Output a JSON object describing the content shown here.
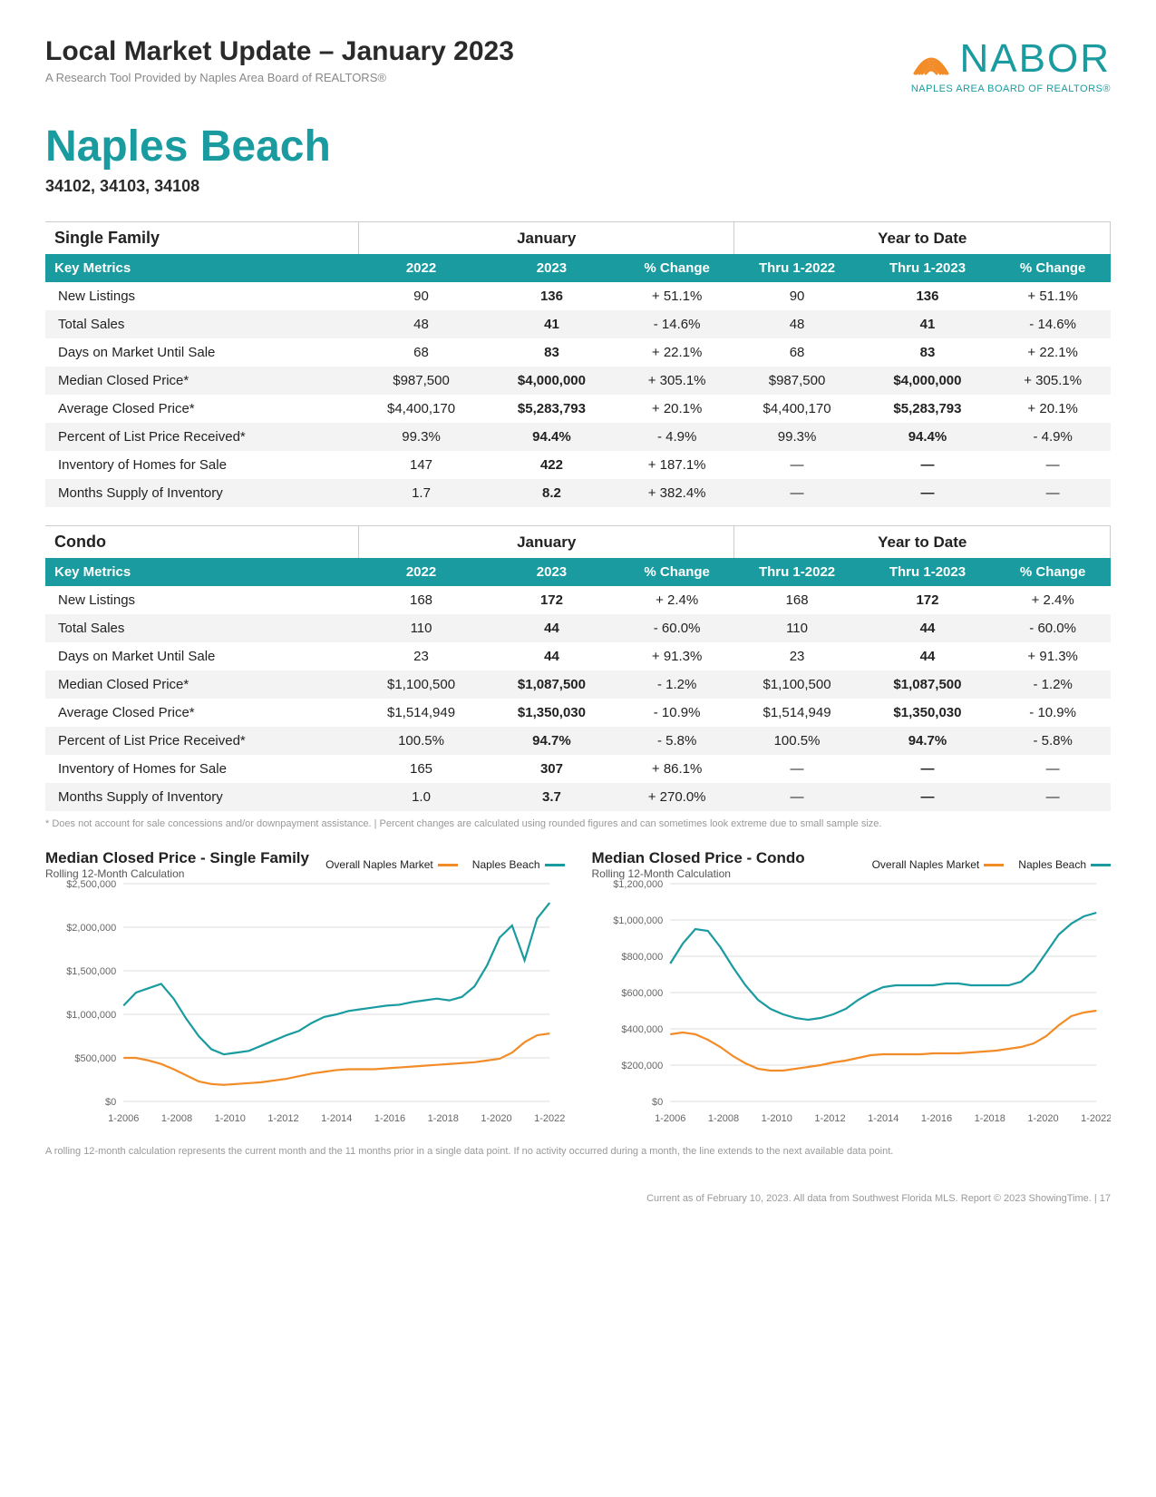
{
  "colors": {
    "teal": "#1a9ba0",
    "orange": "#f28c28",
    "grid": "#dddddd",
    "text_gray": "#888888"
  },
  "header": {
    "title": "Local Market Update – January 2023",
    "subtitle": "A Research Tool Provided by Naples Area Board of REALTORS®",
    "logo_text": "NABOR",
    "logo_sub": "NAPLES AREA BOARD OF REALTORS®"
  },
  "region": {
    "name": "Naples Beach",
    "zips": "34102, 34103, 34108"
  },
  "tables": [
    {
      "section": "Single Family",
      "group1": "January",
      "group2": "Year to Date",
      "headers": [
        "Key Metrics",
        "2022",
        "2023",
        "% Change",
        "Thru 1-2022",
        "Thru 1-2023",
        "% Change"
      ],
      "rows": [
        [
          "New Listings",
          "90",
          "136",
          "+ 51.1%",
          "90",
          "136",
          "+ 51.1%"
        ],
        [
          "Total Sales",
          "48",
          "41",
          "- 14.6%",
          "48",
          "41",
          "- 14.6%"
        ],
        [
          "Days on Market Until Sale",
          "68",
          "83",
          "+ 22.1%",
          "68",
          "83",
          "+ 22.1%"
        ],
        [
          "Median Closed Price*",
          "$987,500",
          "$4,000,000",
          "+ 305.1%",
          "$987,500",
          "$4,000,000",
          "+ 305.1%"
        ],
        [
          "Average Closed Price*",
          "$4,400,170",
          "$5,283,793",
          "+ 20.1%",
          "$4,400,170",
          "$5,283,793",
          "+ 20.1%"
        ],
        [
          "Percent of List Price Received*",
          "99.3%",
          "94.4%",
          "- 4.9%",
          "99.3%",
          "94.4%",
          "- 4.9%"
        ],
        [
          "Inventory of Homes for Sale",
          "147",
          "422",
          "+ 187.1%",
          "—",
          "—",
          "—"
        ],
        [
          "Months Supply of Inventory",
          "1.7",
          "8.2",
          "+ 382.4%",
          "—",
          "—",
          "—"
        ]
      ]
    },
    {
      "section": "Condo",
      "group1": "January",
      "group2": "Year to Date",
      "headers": [
        "Key Metrics",
        "2022",
        "2023",
        "% Change",
        "Thru 1-2022",
        "Thru 1-2023",
        "% Change"
      ],
      "rows": [
        [
          "New Listings",
          "168",
          "172",
          "+ 2.4%",
          "168",
          "172",
          "+ 2.4%"
        ],
        [
          "Total Sales",
          "110",
          "44",
          "- 60.0%",
          "110",
          "44",
          "- 60.0%"
        ],
        [
          "Days on Market Until Sale",
          "23",
          "44",
          "+ 91.3%",
          "23",
          "44",
          "+ 91.3%"
        ],
        [
          "Median Closed Price*",
          "$1,100,500",
          "$1,087,500",
          "- 1.2%",
          "$1,100,500",
          "$1,087,500",
          "- 1.2%"
        ],
        [
          "Average Closed Price*",
          "$1,514,949",
          "$1,350,030",
          "- 10.9%",
          "$1,514,949",
          "$1,350,030",
          "- 10.9%"
        ],
        [
          "Percent of List Price Received*",
          "100.5%",
          "94.7%",
          "- 5.8%",
          "100.5%",
          "94.7%",
          "- 5.8%"
        ],
        [
          "Inventory of Homes for Sale",
          "165",
          "307",
          "+ 86.1%",
          "—",
          "—",
          "—"
        ],
        [
          "Months Supply of Inventory",
          "1.0",
          "3.7",
          "+ 270.0%",
          "—",
          "—",
          "—"
        ]
      ]
    }
  ],
  "table_footnote": "* Does not account for sale concessions and/or downpayment assistance. | Percent changes are calculated using rounded figures and can sometimes look extreme due to small sample size.",
  "charts": [
    {
      "title": "Median Closed Price - Single Family",
      "subtitle": "Rolling 12-Month Calculation",
      "legend": [
        {
          "label": "Overall Naples Market",
          "color": "#f28c28"
        },
        {
          "label": "Naples Beach",
          "color": "#1a9ba0"
        }
      ],
      "ylim": [
        0,
        2500000
      ],
      "ytick_step": 500000,
      "ytick_labels": [
        "$0",
        "$500,000",
        "$1,000,000",
        "$1,500,000",
        "$2,000,000",
        "$2,500,000"
      ],
      "x_labels": [
        "1-2006",
        "1-2008",
        "1-2010",
        "1-2012",
        "1-2014",
        "1-2016",
        "1-2018",
        "1-2020",
        "1-2022"
      ],
      "series": [
        {
          "color": "#f28c28",
          "values": [
            500000,
            500000,
            470000,
            430000,
            370000,
            300000,
            230000,
            200000,
            190000,
            200000,
            210000,
            220000,
            240000,
            260000,
            290000,
            320000,
            340000,
            360000,
            370000,
            370000,
            370000,
            380000,
            390000,
            400000,
            410000,
            420000,
            430000,
            440000,
            450000,
            470000,
            490000,
            560000,
            680000,
            760000,
            780000
          ]
        },
        {
          "color": "#1a9ba0",
          "values": [
            1100000,
            1250000,
            1300000,
            1350000,
            1180000,
            950000,
            750000,
            600000,
            540000,
            560000,
            580000,
            640000,
            700000,
            760000,
            810000,
            900000,
            970000,
            1000000,
            1040000,
            1060000,
            1080000,
            1100000,
            1110000,
            1140000,
            1160000,
            1180000,
            1160000,
            1200000,
            1320000,
            1560000,
            1880000,
            2020000,
            1620000,
            2100000,
            2280000
          ]
        }
      ]
    },
    {
      "title": "Median Closed Price - Condo",
      "subtitle": "Rolling 12-Month Calculation",
      "legend": [
        {
          "label": "Overall Naples Market",
          "color": "#f28c28"
        },
        {
          "label": "Naples Beach",
          "color": "#1a9ba0"
        }
      ],
      "ylim": [
        0,
        1200000
      ],
      "ytick_step": 200000,
      "ytick_labels": [
        "$0",
        "$200,000",
        "$400,000",
        "$600,000",
        "$800,000",
        "$1,000,000",
        "$1,200,000"
      ],
      "x_labels": [
        "1-2006",
        "1-2008",
        "1-2010",
        "1-2012",
        "1-2014",
        "1-2016",
        "1-2018",
        "1-2020",
        "1-2022"
      ],
      "series": [
        {
          "color": "#f28c28",
          "values": [
            370000,
            380000,
            370000,
            340000,
            300000,
            250000,
            210000,
            180000,
            170000,
            170000,
            180000,
            190000,
            200000,
            215000,
            225000,
            240000,
            255000,
            260000,
            260000,
            260000,
            260000,
            265000,
            265000,
            265000,
            270000,
            275000,
            280000,
            290000,
            300000,
            320000,
            360000,
            420000,
            470000,
            490000,
            500000
          ]
        },
        {
          "color": "#1a9ba0",
          "values": [
            760000,
            870000,
            950000,
            940000,
            850000,
            740000,
            640000,
            560000,
            510000,
            480000,
            460000,
            450000,
            460000,
            480000,
            510000,
            560000,
            600000,
            630000,
            640000,
            640000,
            640000,
            640000,
            650000,
            650000,
            640000,
            640000,
            640000,
            640000,
            660000,
            720000,
            820000,
            920000,
            980000,
            1020000,
            1040000
          ]
        }
      ]
    }
  ],
  "chart_footnote": "A rolling 12-month calculation represents the current month and the 11 months prior in a single data point. If no activity occurred during a month, the line extends to the next available data point.",
  "page_footer": "Current as of February 10, 2023. All data from Southwest Florida MLS. Report © 2023 ShowingTime.  |  17"
}
